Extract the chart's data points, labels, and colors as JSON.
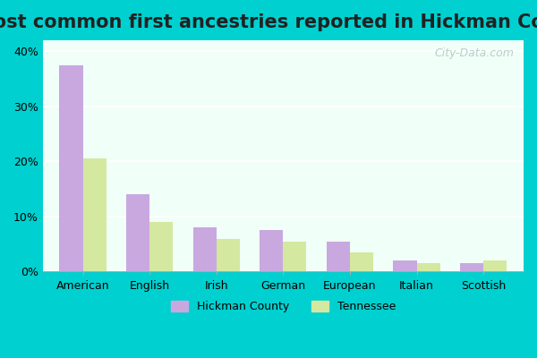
{
  "title": "Most common first ancestries reported in Hickman County",
  "categories": [
    "American",
    "English",
    "Irish",
    "German",
    "European",
    "Italian",
    "Scottish"
  ],
  "hickman": [
    37.5,
    14.0,
    8.0,
    7.5,
    5.5,
    2.0,
    1.5
  ],
  "tennessee": [
    20.5,
    9.0,
    6.0,
    5.5,
    3.5,
    1.5,
    2.0
  ],
  "hickman_color": "#c9a8e0",
  "tennessee_color": "#d4e8a0",
  "background_outer": "#00d0d0",
  "background_inner": "#f0fff8",
  "title_fontsize": 15,
  "ytick_labels": [
    "0%",
    "10%",
    "20%",
    "30%",
    "40%"
  ],
  "ytick_values": [
    0,
    10,
    20,
    30,
    40
  ],
  "ylim": [
    0,
    42
  ],
  "legend_hickman": "Hickman County",
  "legend_tennessee": "Tennessee",
  "bar_width": 0.35,
  "watermark": "City-Data.com"
}
